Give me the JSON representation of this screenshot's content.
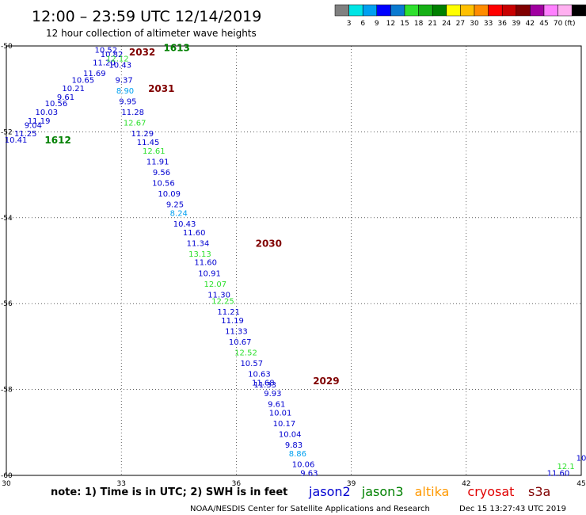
{
  "header": {
    "title": "12:00 – 23:59 UTC 12/14/2019",
    "subtitle": "12 hour collection of altimeter wave heights"
  },
  "colorbar": {
    "unit": "(ft)",
    "ticks": [
      "3",
      "6",
      "9",
      "12",
      "15",
      "18",
      "21",
      "24",
      "27",
      "30",
      "33",
      "36",
      "39",
      "42",
      "45",
      "70"
    ],
    "colors": [
      "#808080",
      "#00e5e5",
      "#00a0f0",
      "#0000ff",
      "#0a7ad0",
      "#2ee02e",
      "#16b016",
      "#008000",
      "#ffff00",
      "#ffc000",
      "#ff8c00",
      "#ff0000",
      "#c80000",
      "#800000",
      "#a000a0",
      "#ff80ff",
      "#ffb0f0",
      "#000000"
    ]
  },
  "footer": {
    "note": "note: 1) Time is in UTC; 2) SWH is in feet",
    "legend": [
      {
        "name": "jason2",
        "color": "#0000d0"
      },
      {
        "name": "jason3",
        "color": "#008000"
      },
      {
        "name": "altika",
        "color": "#ff9900"
      },
      {
        "name": "cryosat",
        "color": "#e00000"
      },
      {
        "name": "s3a",
        "color": "#800000"
      }
    ],
    "credit": "NOAA/NESDIS Center for Satellite Applications and Research",
    "timestamp": "Dec 15 13:27:43 UTC 2019"
  },
  "chart_data": {
    "type": "scatter",
    "xlim": [
      30,
      45
    ],
    "ylim": [
      -60,
      -50
    ],
    "xticks": [
      "30",
      "33",
      "36",
      "39",
      "42",
      "45"
    ],
    "yticks": [
      "-50",
      "-52",
      "-54",
      "-56",
      "-58",
      "-60"
    ],
    "grid": true,
    "time_labels": [
      {
        "text": "1613",
        "x": 34.1,
        "y": -50.05,
        "color": "#008000"
      },
      {
        "text": "2032",
        "x": 33.2,
        "y": -50.15,
        "color": "#800000"
      },
      {
        "text": "2031",
        "x": 33.7,
        "y": -51.0,
        "color": "#800000"
      },
      {
        "text": "1612",
        "x": 31.0,
        "y": -52.2,
        "color": "#008000"
      },
      {
        "text": "2030",
        "x": 36.5,
        "y": -54.6,
        "color": "#800000"
      },
      {
        "text": "2029",
        "x": 38.0,
        "y": -57.8,
        "color": "#800000"
      }
    ],
    "series": [
      {
        "name": "jason2",
        "color": "#0000d0",
        "points": [
          {
            "x": 32.6,
            "y": -50.1,
            "v": "10.52"
          },
          {
            "x": 32.75,
            "y": -50.2,
            "v": "10.82"
          },
          {
            "x": 32.55,
            "y": -50.4,
            "v": "11.20"
          },
          {
            "x": 32.97,
            "y": -50.45,
            "v": "10.43"
          },
          {
            "x": 32.3,
            "y": -50.65,
            "v": "11.69"
          },
          {
            "x": 33.07,
            "y": -50.8,
            "v": "9.37"
          },
          {
            "x": 32.0,
            "y": -50.8,
            "v": "10.65"
          },
          {
            "x": 31.75,
            "y": -51.0,
            "v": "10.21"
          },
          {
            "x": 31.55,
            "y": -51.2,
            "v": "9.61"
          },
          {
            "x": 33.17,
            "y": -51.3,
            "v": "9.95"
          },
          {
            "x": 31.3,
            "y": -51.35,
            "v": "10.56"
          },
          {
            "x": 33.3,
            "y": -51.55,
            "v": "11.28"
          },
          {
            "x": 31.05,
            "y": -51.55,
            "v": "10.03"
          },
          {
            "x": 30.85,
            "y": -51.75,
            "v": "11.19"
          },
          {
            "x": 30.7,
            "y": -51.85,
            "v": "9.04"
          },
          {
            "x": 33.55,
            "y": -52.05,
            "v": "11.29"
          },
          {
            "x": 30.5,
            "y": -52.05,
            "v": "11.25"
          },
          {
            "x": 30.25,
            "y": -52.2,
            "v": "10.41"
          },
          {
            "x": 33.7,
            "y": -52.25,
            "v": "11.45"
          },
          {
            "x": 33.95,
            "y": -52.7,
            "v": "11.91"
          },
          {
            "x": 34.05,
            "y": -52.95,
            "v": "9.56"
          },
          {
            "x": 34.1,
            "y": -53.2,
            "v": "10.56"
          },
          {
            "x": 34.25,
            "y": -53.45,
            "v": "10.09"
          },
          {
            "x": 34.4,
            "y": -53.7,
            "v": "9.25"
          },
          {
            "x": 34.65,
            "y": -54.15,
            "v": "10.43"
          },
          {
            "x": 34.9,
            "y": -54.35,
            "v": "11.60"
          },
          {
            "x": 35.0,
            "y": -54.6,
            "v": "11.34"
          },
          {
            "x": 35.2,
            "y": -55.05,
            "v": "11.60"
          },
          {
            "x": 35.3,
            "y": -55.3,
            "v": "10.91"
          },
          {
            "x": 35.55,
            "y": -55.8,
            "v": "11.30"
          },
          {
            "x": 35.8,
            "y": -56.2,
            "v": "11.21"
          },
          {
            "x": 35.9,
            "y": -56.4,
            "v": "11.19"
          },
          {
            "x": 36.0,
            "y": -56.65,
            "v": "11.33"
          },
          {
            "x": 36.1,
            "y": -56.9,
            "v": "10.67"
          },
          {
            "x": 36.4,
            "y": -57.4,
            "v": "10.57"
          },
          {
            "x": 36.6,
            "y": -57.65,
            "v": "10.63"
          },
          {
            "x": 36.7,
            "y": -57.85,
            "v": "11.68"
          },
          {
            "x": 36.75,
            "y": -57.9,
            "v": "11.33"
          },
          {
            "x": 36.95,
            "y": -58.1,
            "v": "9.93"
          },
          {
            "x": 37.05,
            "y": -58.35,
            "v": "9.61"
          },
          {
            "x": 37.15,
            "y": -58.55,
            "v": "10.01"
          },
          {
            "x": 37.25,
            "y": -58.8,
            "v": "10.17"
          },
          {
            "x": 37.4,
            "y": -59.05,
            "v": "10.04"
          },
          {
            "x": 37.5,
            "y": -59.3,
            "v": "9.83"
          },
          {
            "x": 37.75,
            "y": -59.75,
            "v": "10.06"
          },
          {
            "x": 37.9,
            "y": -59.95,
            "v": "9.63"
          },
          {
            "x": 44.4,
            "y": -59.95,
            "v": "11.60"
          },
          {
            "x": 45.0,
            "y": -59.6,
            "v": "10"
          }
        ]
      },
      {
        "name": "jason3",
        "color": "#008000",
        "points": []
      },
      {
        "name": "light-blue",
        "color": "#00a0f0",
        "points": [
          {
            "x": 33.1,
            "y": -51.05,
            "v": "8.90"
          },
          {
            "x": 34.5,
            "y": -53.9,
            "v": "8.24"
          },
          {
            "x": 37.6,
            "y": -59.5,
            "v": "8.86"
          }
        ]
      },
      {
        "name": "light-green",
        "color": "#2ee02e",
        "points": [
          {
            "x": 32.9,
            "y": -50.3,
            "v": "12.12"
          },
          {
            "x": 33.35,
            "y": -51.8,
            "v": "12.67"
          },
          {
            "x": 33.85,
            "y": -52.45,
            "v": "12.61"
          },
          {
            "x": 35.05,
            "y": -54.85,
            "v": "13.13"
          },
          {
            "x": 35.45,
            "y": -55.55,
            "v": "12.07"
          },
          {
            "x": 35.65,
            "y": -55.95,
            "v": "12.25"
          },
          {
            "x": 36.25,
            "y": -57.15,
            "v": "12.52"
          },
          {
            "x": 44.6,
            "y": -59.8,
            "v": "12.1"
          }
        ]
      }
    ]
  }
}
